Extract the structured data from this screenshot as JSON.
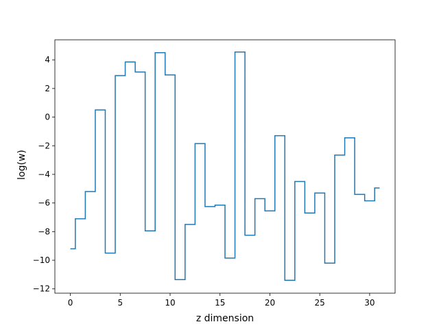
{
  "chart_data": {
    "type": "line",
    "drawstyle": "steps-mid",
    "title": "",
    "xlabel": "z dimension",
    "ylabel": "log(w)",
    "xlim": [
      -1.55,
      32.55
    ],
    "ylim": [
      -12.3,
      5.4
    ],
    "xticks": [
      0,
      5,
      10,
      15,
      20,
      25,
      30
    ],
    "yticks": [
      -12,
      -10,
      -8,
      -6,
      -4,
      -2,
      0,
      2,
      4
    ],
    "grid": false,
    "legend": "none",
    "series": [
      {
        "color": "#1f77b4",
        "x": [
          0,
          1,
          2,
          3,
          4,
          5,
          6,
          7,
          8,
          9,
          10,
          11,
          12,
          13,
          14,
          15,
          16,
          17,
          18,
          19,
          20,
          21,
          22,
          23,
          24,
          25,
          26,
          27,
          28,
          29,
          30,
          31
        ],
        "y": [
          -9.2,
          -7.1,
          -5.2,
          0.5,
          -9.5,
          2.9,
          3.85,
          3.15,
          -7.95,
          4.5,
          2.95,
          -11.35,
          -7.5,
          -1.85,
          -6.25,
          -6.15,
          -9.85,
          4.55,
          -8.25,
          -5.7,
          -6.55,
          -1.3,
          -11.4,
          -4.5,
          -6.7,
          -5.3,
          -10.2,
          -2.65,
          -1.45,
          -5.4,
          -5.85,
          -4.95
        ]
      }
    ]
  }
}
